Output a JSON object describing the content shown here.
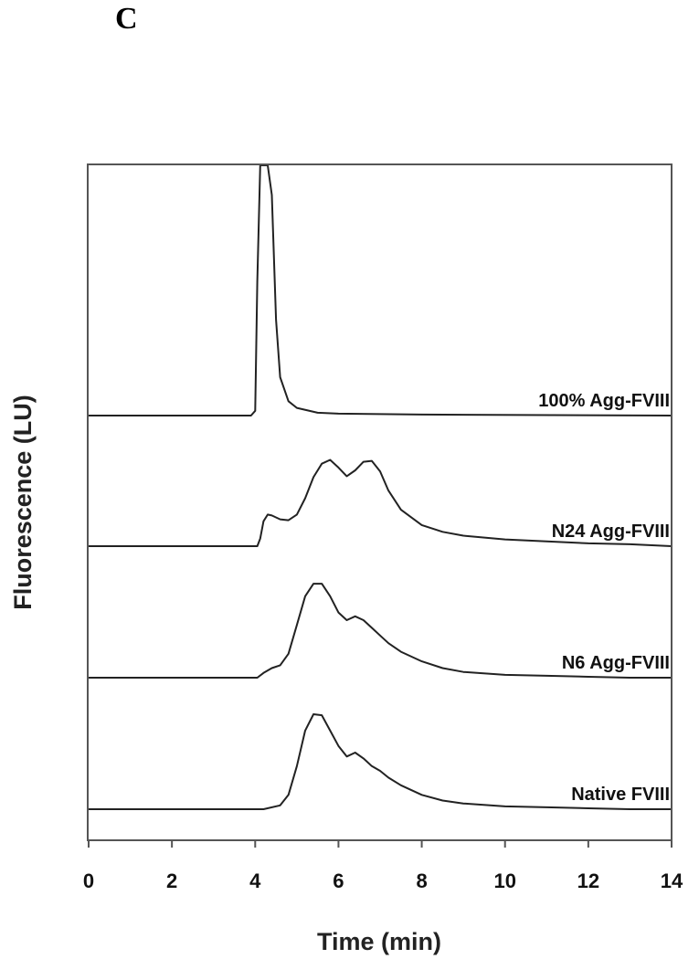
{
  "panel_label": "C",
  "chart_data": {
    "type": "line",
    "title": "",
    "xlabel": "Time (min)",
    "ylabel": "Fluorescence (LU)",
    "xlim": [
      0,
      14
    ],
    "xticks": [
      0,
      2,
      4,
      6,
      8,
      10,
      12,
      14
    ],
    "y_ticks_shown": false,
    "grid": false,
    "layout": "stacked traces, each offset vertically",
    "series": [
      {
        "name": "100% Agg-FVIII",
        "offset_index": 3,
        "x": [
          0,
          3.9,
          4.0,
          4.05,
          4.12,
          4.2,
          4.3,
          4.4,
          4.5,
          4.6,
          4.8,
          5.0,
          5.5,
          6.0,
          8.0,
          14
        ],
        "y": [
          0,
          0,
          0.05,
          1.4,
          2.8,
          3.2,
          3.2,
          2.3,
          1.0,
          0.4,
          0.15,
          0.08,
          0.03,
          0.02,
          0.01,
          0
        ]
      },
      {
        "name": "N24 Agg-FVIII",
        "offset_index": 2,
        "x": [
          0,
          4.05,
          4.12,
          4.2,
          4.3,
          4.4,
          4.6,
          4.8,
          5.0,
          5.2,
          5.4,
          5.6,
          5.8,
          6.0,
          6.2,
          6.4,
          6.6,
          6.8,
          7.0,
          7.2,
          7.5,
          8.0,
          8.5,
          9.0,
          10.0,
          11.0,
          12.0,
          13.0,
          14.0
        ],
        "y": [
          0,
          0,
          0.08,
          0.26,
          0.33,
          0.32,
          0.28,
          0.27,
          0.33,
          0.5,
          0.72,
          0.86,
          0.9,
          0.82,
          0.73,
          0.79,
          0.88,
          0.89,
          0.78,
          0.58,
          0.38,
          0.22,
          0.15,
          0.11,
          0.07,
          0.05,
          0.03,
          0.02,
          0
        ]
      },
      {
        "name": "N6 Agg-FVIII",
        "offset_index": 1,
        "x": [
          0,
          4.05,
          4.2,
          4.4,
          4.6,
          4.8,
          5.0,
          5.2,
          5.4,
          5.6,
          5.8,
          6.0,
          6.2,
          6.4,
          6.6,
          6.8,
          7.0,
          7.2,
          7.5,
          8.0,
          8.5,
          9.0,
          10.0,
          11.0,
          12.0,
          13.0,
          14.0
        ],
        "y": [
          0,
          0,
          0.05,
          0.1,
          0.13,
          0.25,
          0.55,
          0.85,
          0.98,
          0.98,
          0.85,
          0.68,
          0.6,
          0.64,
          0.6,
          0.52,
          0.44,
          0.36,
          0.27,
          0.17,
          0.1,
          0.06,
          0.03,
          0.02,
          0.01,
          0,
          0
        ]
      },
      {
        "name": "Native FVIII",
        "offset_index": 0,
        "x": [
          0,
          4.2,
          4.6,
          4.8,
          5.0,
          5.2,
          5.4,
          5.6,
          5.8,
          6.0,
          6.2,
          6.4,
          6.6,
          6.8,
          7.0,
          7.2,
          7.5,
          8.0,
          8.5,
          9.0,
          10.0,
          11.0,
          12.0,
          13.0,
          14.0
        ],
        "y": [
          0,
          0,
          0.04,
          0.15,
          0.45,
          0.82,
          0.99,
          0.98,
          0.82,
          0.66,
          0.55,
          0.59,
          0.53,
          0.45,
          0.4,
          0.33,
          0.25,
          0.15,
          0.09,
          0.06,
          0.03,
          0.02,
          0.01,
          0,
          0
        ]
      }
    ]
  }
}
